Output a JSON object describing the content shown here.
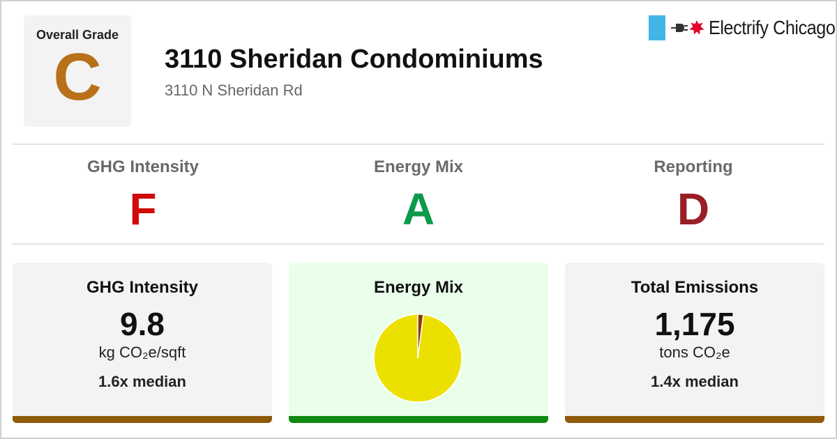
{
  "header": {
    "overall_label": "Overall Grade",
    "overall_grade": "C",
    "overall_color": "#b8711a",
    "title": "3110 Sheridan Condominiums",
    "address": "3110 N Sheridan Rd"
  },
  "brand": {
    "name": "Electrify Chicago",
    "flag_color": "#41b6e6",
    "star_color": "#e4002b",
    "icons": [
      "chicago-flag-icon",
      "plug-icon",
      "star-icon"
    ]
  },
  "grades": [
    {
      "label": "GHG Intensity",
      "grade": "F",
      "color": "#d10a0a"
    },
    {
      "label": "Energy Mix",
      "grade": "A",
      "color": "#0a9a4a"
    },
    {
      "label": "Reporting",
      "grade": "D",
      "color": "#9b1d26"
    }
  ],
  "cards": {
    "ghg": {
      "title": "GHG Intensity",
      "value": "9.8",
      "unit": "kg CO₂e/sqft",
      "median": "1.6x median",
      "bar_color": "#8f5a0a",
      "bg_color": "#f3f3f3"
    },
    "energy": {
      "title": "Energy Mix",
      "bar_color": "#108a10",
      "bg_color": "#eaffea"
    },
    "emissions": {
      "title": "Total Emissions",
      "value": "1,175",
      "unit": "tons CO₂e",
      "median": "1.4x median",
      "bar_color": "#8f5a0a",
      "bg_color": "#f3f3f3"
    }
  },
  "chart_data": {
    "type": "pie",
    "slices": [
      {
        "value": 98,
        "color": "#ece000"
      },
      {
        "value": 2,
        "color": "#8b3a00"
      }
    ]
  }
}
